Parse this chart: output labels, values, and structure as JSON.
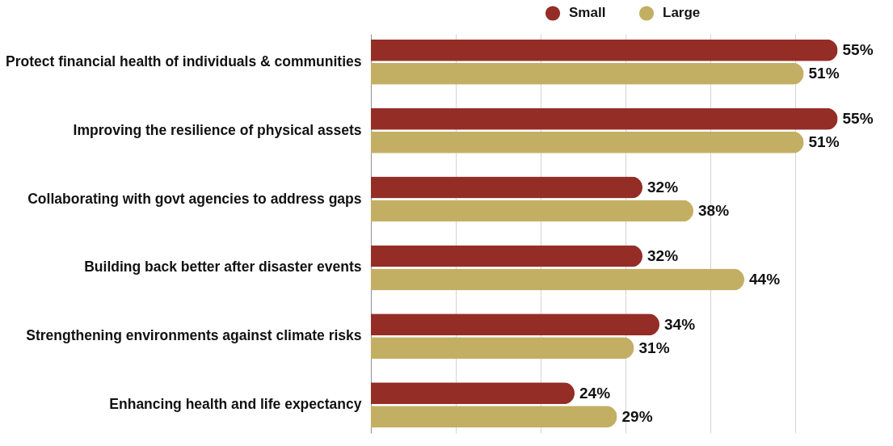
{
  "chart_data": {
    "type": "bar",
    "orientation": "horizontal",
    "categories": [
      "Protect financial health of individuals & communities",
      "Improving the resilience of physical assets",
      "Collaborating with govt agencies to address gaps",
      "Building back better after disaster events",
      "Strengthening environments against climate risks",
      "Enhancing health and life expectancy"
    ],
    "series": [
      {
        "name": "Small",
        "color": "#932d26",
        "values": [
          55,
          55,
          32,
          32,
          34,
          24
        ],
        "value_labels": [
          "55%",
          "55%",
          "32%",
          "32%",
          "34%",
          "24%"
        ]
      },
      {
        "name": "Large",
        "color": "#c3af63",
        "values": [
          51,
          51,
          38,
          44,
          31,
          29
        ],
        "value_labels": [
          "51%",
          "51%",
          "38%",
          "44%",
          "31%",
          "29%"
        ]
      }
    ],
    "xlim": [
      0,
      60
    ],
    "xticks": [
      {
        "value": 0,
        "label": null
      },
      {
        "value": 10,
        "label": null
      },
      {
        "value": 20,
        "label": null
      },
      {
        "value": 30,
        "label": null
      },
      {
        "value": 40,
        "label": null
      },
      {
        "value": 50,
        "label": null
      }
    ],
    "grid": "x",
    "legend": "top",
    "tick_labels": "y"
  }
}
